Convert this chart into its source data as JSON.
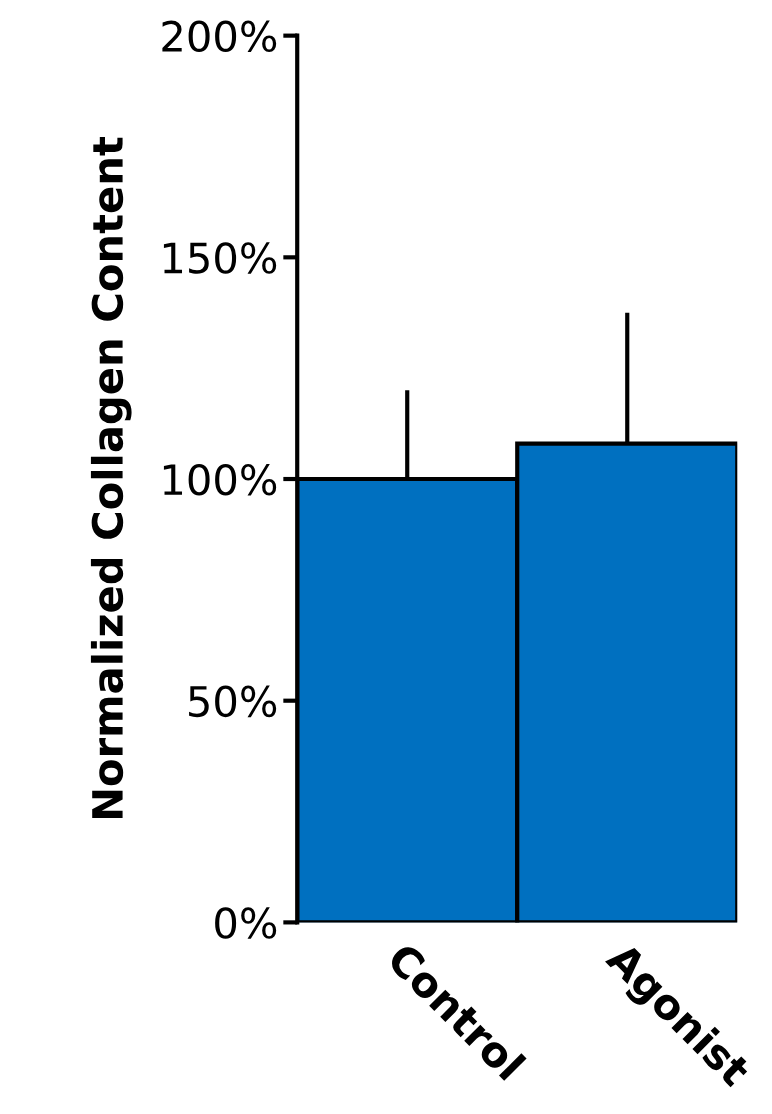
{
  "chart_data": {
    "type": "bar",
    "ylabel": "Normalized Collagen Content",
    "categories": [
      "Control",
      "Agonist"
    ],
    "values": [
      100,
      108
    ],
    "errors": [
      [
        100,
        120
      ],
      [
        108,
        137.5
      ]
    ],
    "color": "#0070c0",
    "ylim": [
      0,
      200
    ],
    "yticks": [
      {
        "value": 0,
        "label": "0%"
      },
      {
        "value": 50,
        "label": "50%"
      },
      {
        "value": 100,
        "label": "100%"
      },
      {
        "value": 150,
        "label": "150%"
      },
      {
        "value": 200,
        "label": "200%"
      }
    ],
    "grid": false,
    "legend": false
  }
}
